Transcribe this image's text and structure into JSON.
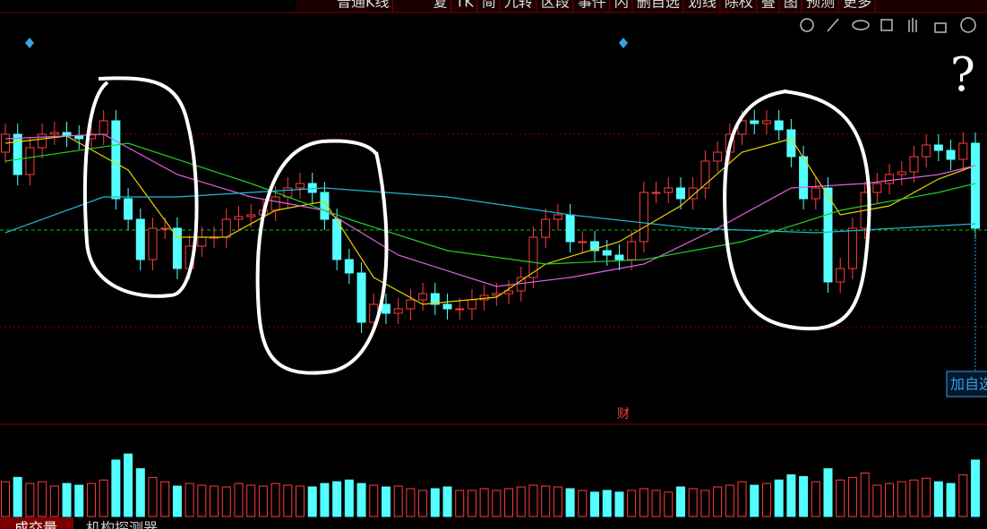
{
  "toolbar": [
    "普通K线",
    "复",
    "TK",
    "简",
    "九转",
    "区段",
    "事件",
    "闪",
    "删自选",
    "划线",
    "除权",
    "叠",
    "图",
    "预测",
    "更多"
  ],
  "tabs": [
    "成交量",
    "机构探测器"
  ],
  "side_button": "加自选",
  "event_marker": "财",
  "annotation": "?",
  "chart_data": {
    "type": "candlestick",
    "up_color": "#ff3c3c",
    "down_color": "#54ffff",
    "ylim": [
      0,
      430
    ],
    "reference_line": 213,
    "reference_color": "#00cc00",
    "open": [
      300,
      320,
      275,
      305,
      320,
      322,
      318,
      315,
      320,
      335,
      248,
      225,
      180,
      215,
      215,
      170,
      195,
      205,
      205,
      225,
      228,
      230,
      235,
      250,
      260,
      265,
      255,
      225,
      180,
      165,
      110,
      130,
      120,
      125,
      135,
      142,
      130,
      125,
      125,
      135,
      140,
      142,
      145,
      160,
      205,
      225,
      230,
      200,
      200,
      190,
      185,
      180,
      200,
      255,
      255,
      260,
      248,
      260,
      290,
      300,
      320,
      335,
      332,
      335,
      325,
      295,
      248,
      260,
      155,
      170,
      215,
      255,
      265,
      275,
      278,
      295,
      308,
      302,
      292,
      310
    ],
    "high": [
      332,
      332,
      317,
      332,
      334,
      334,
      330,
      332,
      347,
      347,
      260,
      237,
      227,
      227,
      227,
      207,
      217,
      217,
      237,
      240,
      242,
      247,
      262,
      272,
      277,
      277,
      267,
      237,
      192,
      177,
      142,
      142,
      137,
      147,
      154,
      154,
      142,
      137,
      147,
      152,
      154,
      157,
      172,
      217,
      237,
      242,
      242,
      212,
      212,
      202,
      197,
      212,
      267,
      267,
      272,
      272,
      272,
      302,
      312,
      332,
      347,
      347,
      347,
      347,
      337,
      307,
      272,
      272,
      182,
      227,
      267,
      277,
      287,
      290,
      307,
      320,
      320,
      314,
      322,
      322
    ],
    "low": [
      288,
      263,
      263,
      293,
      308,
      306,
      303,
      303,
      308,
      236,
      213,
      168,
      168,
      203,
      158,
      158,
      183,
      193,
      193,
      213,
      216,
      218,
      223,
      238,
      248,
      243,
      213,
      168,
      153,
      98,
      98,
      108,
      108,
      113,
      123,
      118,
      113,
      113,
      113,
      123,
      128,
      130,
      133,
      148,
      193,
      213,
      188,
      188,
      178,
      173,
      168,
      168,
      188,
      243,
      243,
      236,
      236,
      248,
      278,
      288,
      308,
      320,
      320,
      313,
      283,
      236,
      236,
      143,
      143,
      158,
      203,
      243,
      253,
      263,
      266,
      283,
      290,
      280,
      280,
      203
    ],
    "close": [
      320,
      275,
      305,
      320,
      322,
      318,
      315,
      320,
      335,
      248,
      225,
      180,
      215,
      215,
      170,
      195,
      205,
      205,
      225,
      228,
      230,
      235,
      250,
      260,
      265,
      255,
      225,
      180,
      165,
      110,
      130,
      120,
      125,
      135,
      142,
      130,
      125,
      125,
      135,
      140,
      142,
      145,
      160,
      205,
      225,
      230,
      200,
      200,
      190,
      185,
      180,
      200,
      255,
      255,
      260,
      248,
      260,
      290,
      300,
      320,
      335,
      332,
      335,
      325,
      295,
      248,
      260,
      155,
      170,
      215,
      255,
      265,
      275,
      278,
      295,
      308,
      302,
      292,
      310,
      215
    ],
    "volume": [
      40,
      45,
      38,
      40,
      35,
      38,
      36,
      38,
      42,
      65,
      72,
      55,
      45,
      40,
      35,
      38,
      36,
      35,
      34,
      38,
      36,
      35,
      38,
      36,
      35,
      34,
      38,
      40,
      42,
      38,
      36,
      34,
      35,
      32,
      30,
      32,
      34,
      30,
      30,
      32,
      30,
      32,
      34,
      36,
      35,
      34,
      32,
      30,
      28,
      30,
      28,
      30,
      32,
      30,
      28,
      34,
      32,
      30,
      34,
      36,
      40,
      36,
      38,
      42,
      48,
      46,
      40,
      55,
      42,
      45,
      50,
      36,
      38,
      40,
      42,
      44,
      40,
      38,
      48,
      65
    ],
    "volume_ylim": [
      0,
      100
    ],
    "series": [
      {
        "color": "#e6d200",
        "x": [
          0,
          5,
          10,
          14,
          18,
          22,
          26,
          30,
          34,
          40,
          44,
          50,
          55,
          60,
          64,
          68,
          72,
          76,
          79
        ],
        "values": [
          310,
          318,
          280,
          205,
          205,
          235,
          245,
          160,
          130,
          138,
          175,
          200,
          240,
          300,
          315,
          230,
          240,
          270,
          285
        ]
      },
      {
        "color": "#e060e0",
        "x": [
          0,
          8,
          14,
          20,
          26,
          32,
          40,
          46,
          52,
          58,
          64,
          70,
          76,
          79
        ],
        "values": [
          315,
          320,
          275,
          250,
          235,
          185,
          150,
          160,
          175,
          215,
          260,
          265,
          275,
          285
        ]
      },
      {
        "color": "#20d020",
        "x": [
          0,
          10,
          20,
          28,
          36,
          44,
          52,
          60,
          68,
          76,
          79
        ],
        "values": [
          290,
          310,
          265,
          225,
          190,
          175,
          180,
          200,
          235,
          255,
          265
        ]
      },
      {
        "color": "#20b8d8",
        "x": [
          0,
          8,
          14,
          20,
          26,
          36,
          46,
          56,
          66,
          79
        ],
        "values": [
          210,
          250,
          250,
          255,
          260,
          250,
          230,
          215,
          210,
          220
        ]
      }
    ]
  }
}
